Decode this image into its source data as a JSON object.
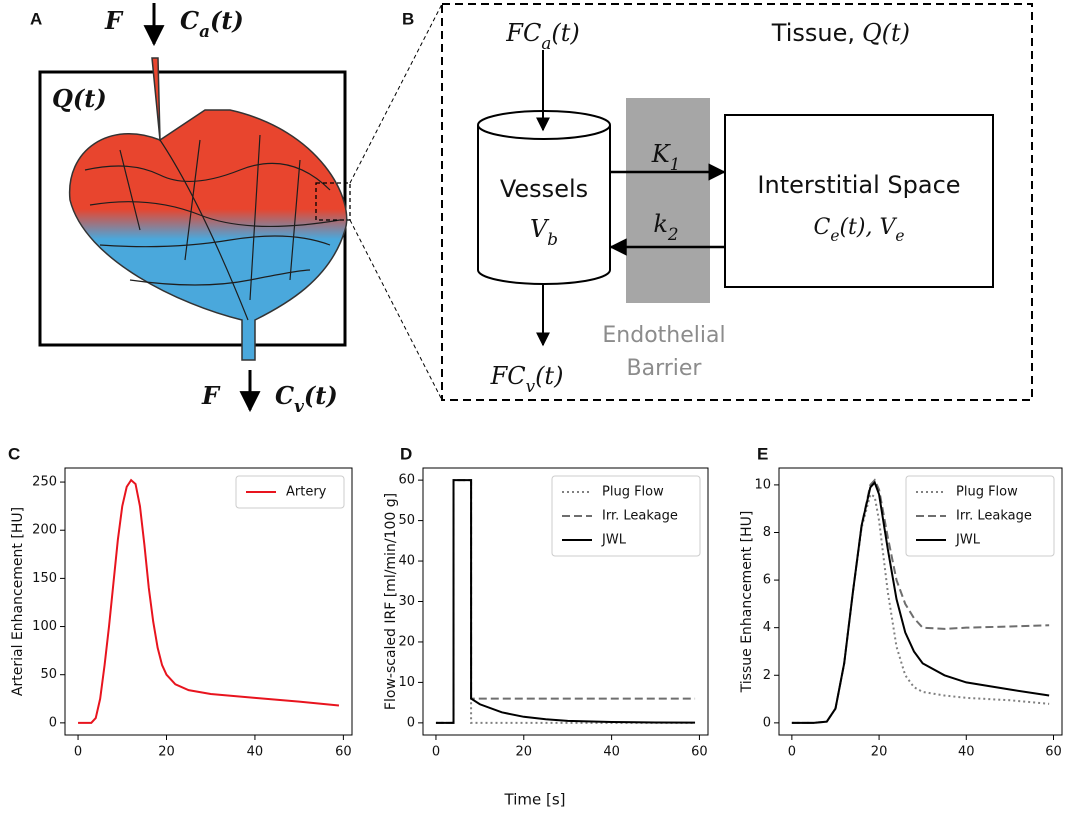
{
  "panel_labels": [
    "A",
    "B",
    "C",
    "D",
    "E"
  ],
  "diagram_a": {
    "inflow_flow": [
      "F"
    ],
    "inflow_concentration": [
      "C",
      "a",
      "(t)"
    ],
    "tissue": [
      "Q(t)"
    ],
    "outflow_flow": [
      "F"
    ],
    "outflow_concentration": [
      "C",
      "v",
      "(t)"
    ]
  },
  "diagram_b": {
    "tissue_title": "Tissue,",
    "tissue_symbol": [
      "Q(t)"
    ],
    "inflow": [
      "FC",
      "a",
      "(t)"
    ],
    "outflow": [
      "FC",
      "v",
      "(t)"
    ],
    "vessels_title": "Vessels",
    "vessels_symbol": [
      "V",
      "b"
    ],
    "forward_rate": [
      "K",
      "1"
    ],
    "backward_rate": [
      "k",
      "2"
    ],
    "interstitial_title": "Interstitial Space",
    "interstitial_symbol": [
      "C",
      "e",
      "(t), V",
      "e"
    ],
    "barrier_label": [
      "Endothelial",
      "Barrier"
    ]
  },
  "shared_xlabel": "Time [s]",
  "chart_data": [
    {
      "type": "line",
      "ylabel": "Arterial Enhancement [HU]",
      "x": [
        0,
        3,
        4,
        5,
        6,
        7,
        8,
        9,
        10,
        11,
        12,
        13,
        14,
        15,
        16,
        17,
        18,
        19,
        20,
        22,
        25,
        30,
        40,
        50,
        59
      ],
      "series": [
        {
          "name": "Artery",
          "color": "#e8141e",
          "dash": "solid",
          "values": [
            0,
            0,
            5,
            25,
            60,
            100,
            145,
            190,
            225,
            245,
            252,
            248,
            225,
            185,
            140,
            105,
            78,
            60,
            50,
            40,
            34,
            30,
            26,
            22,
            18
          ]
        }
      ],
      "xlim": [
        -2.95,
        61.95
      ],
      "xticks": [
        0,
        20,
        40,
        60
      ],
      "ylim": [
        -12.6,
        264.6
      ],
      "yticks": [
        0,
        50,
        100,
        150,
        200,
        250
      ],
      "legend": "upper right"
    },
    {
      "type": "line",
      "ylabel": "Flow-scaled IRF [ml/min/100 g]",
      "x": [
        0,
        4,
        4,
        8,
        8,
        10,
        15,
        20,
        25,
        30,
        40,
        50,
        59
      ],
      "series": [
        {
          "name": "Plug Flow",
          "color": "#808080",
          "dash": "dotted",
          "values": [
            0,
            0,
            60,
            60,
            0,
            0,
            0,
            0,
            0,
            0,
            0,
            0,
            0
          ]
        },
        {
          "name": "Irr. Leakage",
          "color": "#6e6e6e",
          "dash": "dashed",
          "values": [
            0,
            0,
            60,
            60,
            6,
            6,
            6,
            6,
            6,
            6,
            6,
            6,
            6
          ]
        },
        {
          "name": "JWL",
          "color": "#000000",
          "dash": "solid",
          "values": [
            0,
            0,
            60,
            60,
            6,
            4.6,
            2.6,
            1.5,
            0.9,
            0.5,
            0.2,
            0.1,
            0.05
          ]
        }
      ],
      "xlim": [
        -2.95,
        61.95
      ],
      "xticks": [
        0,
        20,
        40,
        60
      ],
      "ylim": [
        -3,
        63
      ],
      "yticks": [
        0,
        10,
        20,
        30,
        40,
        50,
        60
      ],
      "legend": "upper right"
    },
    {
      "type": "line",
      "ylabel": "Tissue Enhancement [HU]",
      "x": [
        0,
        5,
        8,
        10,
        12,
        14,
        16,
        18,
        19,
        20,
        22,
        24,
        26,
        28,
        30,
        35,
        40,
        50,
        59
      ],
      "series": [
        {
          "name": "Plug Flow",
          "color": "#808080",
          "dash": "dotted",
          "values": [
            0,
            0,
            0.05,
            0.6,
            2.5,
            5.5,
            8.2,
            9.6,
            9.5,
            8.5,
            5.5,
            3.2,
            2.0,
            1.5,
            1.3,
            1.15,
            1.05,
            0.95,
            0.8
          ]
        },
        {
          "name": "Irr. Leakage",
          "color": "#6e6e6e",
          "dash": "dashed",
          "values": [
            0,
            0,
            0.05,
            0.6,
            2.5,
            5.5,
            8.3,
            10.0,
            10.2,
            9.8,
            7.8,
            6.0,
            5.0,
            4.4,
            4.0,
            3.95,
            4.0,
            4.05,
            4.1
          ]
        },
        {
          "name": "JWL",
          "color": "#000000",
          "dash": "solid",
          "values": [
            0,
            0,
            0.05,
            0.6,
            2.5,
            5.5,
            8.3,
            9.9,
            10.1,
            9.6,
            7.3,
            5.2,
            3.8,
            3.0,
            2.5,
            2.0,
            1.7,
            1.4,
            1.15
          ]
        }
      ],
      "xlim": [
        -2.95,
        61.95
      ],
      "xticks": [
        0,
        20,
        40,
        60
      ],
      "ylim": [
        -0.51,
        10.71
      ],
      "yticks": [
        0,
        2,
        4,
        6,
        8,
        10
      ],
      "legend": "upper right"
    }
  ]
}
